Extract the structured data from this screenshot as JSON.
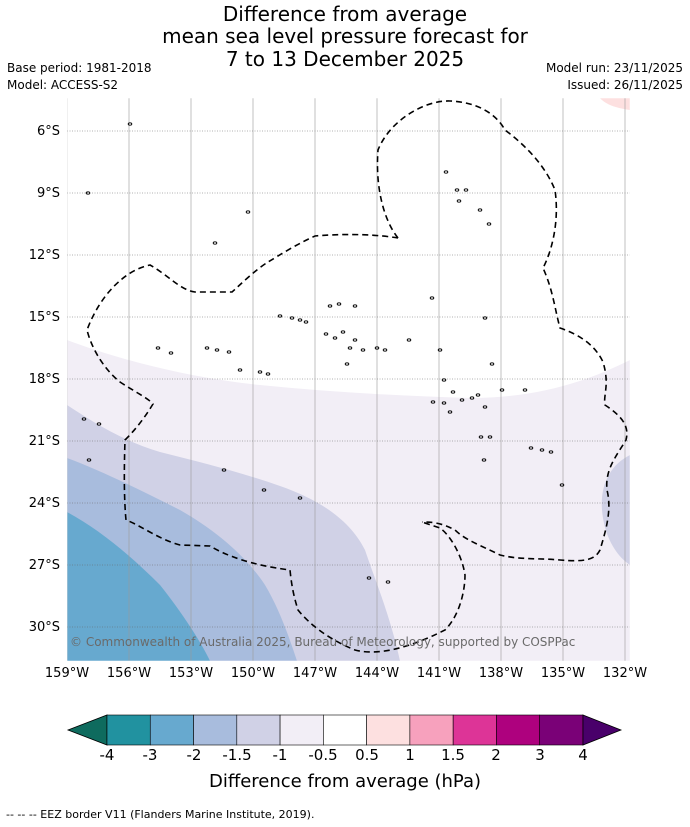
{
  "title": {
    "line1": "Difference from average",
    "line2": "mean sea level pressure forecast for",
    "line3": "7 to 13 December 2025"
  },
  "meta": {
    "base_period": "Base period: 1981-2018",
    "model": "Model: ACCESS-S2",
    "model_run": "Model run: 23/11/2025",
    "issued": "Issued: 26/11/2025"
  },
  "map": {
    "lat_labels": [
      "6°S",
      "9°S",
      "12°S",
      "15°S",
      "18°S",
      "21°S",
      "24°S",
      "27°S",
      "30°S"
    ],
    "lon_labels": [
      "159°W",
      "156°W",
      "153°W",
      "150°W",
      "147°W",
      "144°W",
      "141°W",
      "138°W",
      "135°W",
      "132°W"
    ],
    "copyright": "© Commonwealth of Australia 2025, Bureau of Meteorology, supported by COSPPac"
  },
  "colorbar": {
    "ticks": [
      "-4",
      "-3",
      "-2",
      "-1.5",
      "-1",
      "-0.5",
      "0.5",
      "1",
      "1.5",
      "2",
      "3",
      "4"
    ],
    "colors": [
      "#0e6b5e",
      "#2192a0",
      "#67a9cf",
      "#a8bcdd",
      "#d0d1e6",
      "#f2eef6",
      "#ffffff",
      "#fde0e0",
      "#f7a1bd",
      "#dd3497",
      "#ae017e",
      "#7a0177",
      "#49006a"
    ],
    "label": "Difference from average (hPa)"
  },
  "footer": "--  --  -- EEZ border V11 (Flanders Marine Institute, 2019)."
}
